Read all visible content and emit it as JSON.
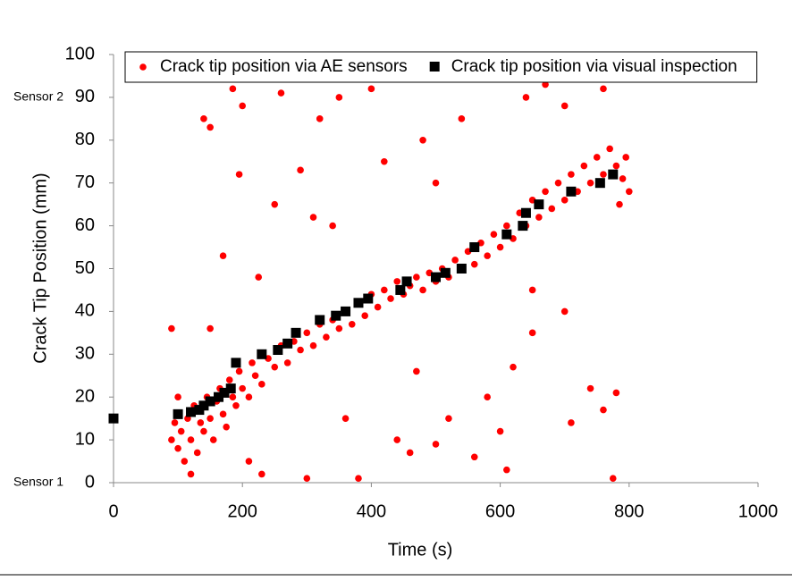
{
  "chart_data": {
    "type": "scatter",
    "xlabel": "Time (s)",
    "ylabel": "Crack Tip Position (mm)",
    "xlim": [
      0,
      1000
    ],
    "xticks": [
      0,
      200,
      400,
      600,
      800,
      1000
    ],
    "ylim": [
      0,
      100
    ],
    "yticks": [
      0,
      10,
      20,
      30,
      40,
      50,
      60,
      70,
      80,
      90,
      100
    ],
    "grid": false,
    "legend": "top",
    "annotations": [
      {
        "text": "Sensor 2",
        "y": 90
      },
      {
        "text": "Sensor 1",
        "y": 0
      }
    ],
    "series": [
      {
        "name": "Crack tip position via AE sensors",
        "color": "#ff0000",
        "marker": "circle",
        "x": [
          90,
          95,
          100,
          105,
          110,
          115,
          120,
          125,
          130,
          135,
          140,
          145,
          150,
          155,
          160,
          165,
          170,
          175,
          180,
          185,
          190,
          195,
          200,
          210,
          215,
          220,
          230,
          240,
          250,
          260,
          270,
          280,
          290,
          300,
          310,
          320,
          330,
          340,
          350,
          360,
          370,
          380,
          390,
          400,
          410,
          420,
          430,
          440,
          450,
          460,
          470,
          480,
          490,
          500,
          510,
          520,
          530,
          540,
          550,
          560,
          570,
          580,
          590,
          600,
          610,
          620,
          630,
          640,
          650,
          660,
          670,
          680,
          690,
          700,
          710,
          720,
          730,
          740,
          750,
          760,
          770,
          780,
          790,
          800,
          795,
          785,
          90,
          140,
          150,
          170,
          185,
          200,
          210,
          230,
          250,
          260,
          290,
          300,
          320,
          340,
          350,
          380,
          400,
          420,
          440,
          460,
          480,
          500,
          520,
          540,
          560,
          600,
          610,
          620,
          640,
          650,
          670,
          700,
          710,
          740,
          760,
          780,
          775,
          700,
          760,
          650,
          580,
          470,
          360,
          310,
          225,
          195,
          150,
          100,
          120,
          500
        ],
        "values": [
          10,
          14,
          8,
          12,
          5,
          15,
          10,
          18,
          7,
          14,
          12,
          20,
          15,
          10,
          19,
          22,
          16,
          13,
          24,
          20,
          18,
          26,
          22,
          20,
          28,
          25,
          23,
          29,
          27,
          32,
          28,
          33,
          31,
          35,
          32,
          37,
          34,
          38,
          36,
          40,
          37,
          42,
          39,
          44,
          41,
          45,
          43,
          47,
          44,
          46,
          48,
          45,
          49,
          47,
          50,
          48,
          52,
          50,
          54,
          51,
          56,
          53,
          58,
          55,
          60,
          57,
          63,
          60,
          66,
          62,
          68,
          64,
          70,
          66,
          72,
          68,
          74,
          70,
          76,
          72,
          78,
          74,
          71,
          68,
          76,
          65,
          36,
          85,
          83,
          53,
          92,
          88,
          5,
          2,
          65,
          91,
          73,
          1,
          85,
          60,
          90,
          1,
          92,
          75,
          10,
          7,
          80,
          9,
          15,
          85,
          6,
          12,
          3,
          27,
          90,
          45,
          93,
          40,
          14,
          22,
          17,
          21,
          1,
          88,
          92,
          35,
          20,
          26,
          15,
          62,
          48,
          72,
          36,
          20,
          2,
          70
        ]
      },
      {
        "name": "Crack tip position via visual inspection",
        "color": "#000000",
        "marker": "square",
        "x": [
          0,
          100,
          120,
          133,
          140,
          150,
          163,
          172,
          182,
          190,
          230,
          255,
          270,
          283,
          320,
          345,
          360,
          380,
          395,
          445,
          455,
          500,
          515,
          540,
          560,
          610,
          635,
          640,
          660,
          710,
          755,
          775
        ],
        "values": [
          15,
          16,
          16.5,
          17,
          18,
          19,
          20,
          21,
          22,
          28,
          30,
          31,
          32.5,
          35,
          38,
          39,
          40,
          42,
          43,
          45,
          47,
          48,
          49,
          50,
          55,
          58,
          60,
          63,
          65,
          68,
          70,
          72
        ]
      }
    ]
  }
}
